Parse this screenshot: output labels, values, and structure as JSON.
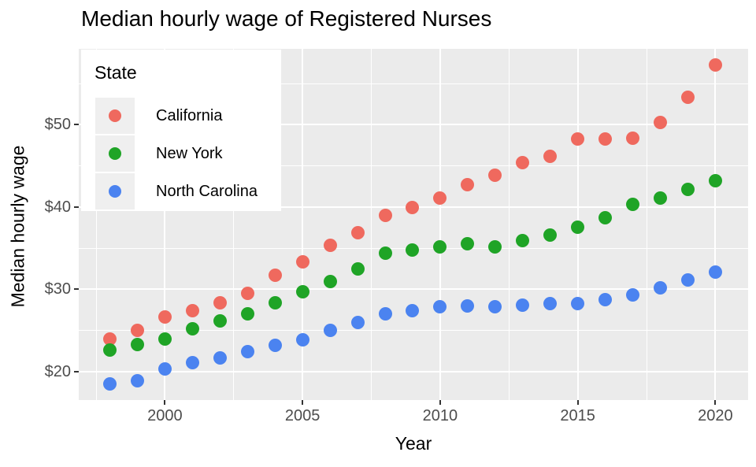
{
  "title": "Median hourly wage of Registered Nurses",
  "chart_data": {
    "type": "scatter",
    "title": "Median hourly wage of Registered Nurses",
    "xlabel": "Year",
    "ylabel": "Median hourly wage",
    "legend_title": "State",
    "legend_position": "inside-top-left",
    "grid": true,
    "panel_bg": "#EBEBEB",
    "grid_color": "#FFFFFF",
    "tick_label_color": "#4D4D4D",
    "x": [
      1998,
      1999,
      2000,
      2001,
      2002,
      2003,
      2004,
      2005,
      2006,
      2007,
      2008,
      2009,
      2010,
      2011,
      2012,
      2013,
      2014,
      2015,
      2016,
      2017,
      2018,
      2019,
      2020
    ],
    "series": [
      {
        "name": "California",
        "color": "#ef695e",
        "values": [
          24.0,
          25.0,
          26.6,
          27.4,
          28.4,
          29.5,
          31.7,
          33.3,
          35.3,
          36.9,
          39.0,
          39.9,
          41.1,
          42.7,
          43.9,
          45.4,
          46.2,
          48.3,
          48.3,
          48.4,
          50.3,
          53.3,
          57.3
        ]
      },
      {
        "name": "New York",
        "color": "#1fa426",
        "values": [
          22.6,
          23.3,
          24.0,
          25.2,
          26.2,
          27.0,
          28.4,
          29.7,
          30.9,
          32.5,
          34.4,
          34.8,
          35.2,
          35.5,
          35.2,
          35.9,
          36.6,
          37.5,
          38.7,
          40.3,
          41.1,
          42.1,
          43.2
        ]
      },
      {
        "name": "North Carolina",
        "color": "#4b83f0",
        "values": [
          18.5,
          18.9,
          20.3,
          21.1,
          21.7,
          22.4,
          23.2,
          23.9,
          25.0,
          26.0,
          27.0,
          27.4,
          27.9,
          28.0,
          27.9,
          28.1,
          28.3,
          28.3,
          28.7,
          29.3,
          30.2,
          31.1,
          32.1
        ]
      }
    ],
    "xlim": [
      1996.87,
      2021.19
    ],
    "ylim": [
      16.54,
      59.22
    ],
    "x_ticks": [
      2000,
      2005,
      2010,
      2015,
      2020
    ],
    "x_tick_labels": [
      "2000",
      "2005",
      "2010",
      "2015",
      "2020"
    ],
    "y_ticks": [
      20,
      30,
      40,
      50
    ],
    "y_tick_labels": [
      "$20",
      "$30",
      "$40",
      "$50"
    ],
    "x_minor_ticks": [
      1997.5,
      2002.5,
      2007.5,
      2012.5,
      2017.5
    ],
    "y_minor_ticks": [
      25,
      35,
      45,
      55
    ]
  }
}
